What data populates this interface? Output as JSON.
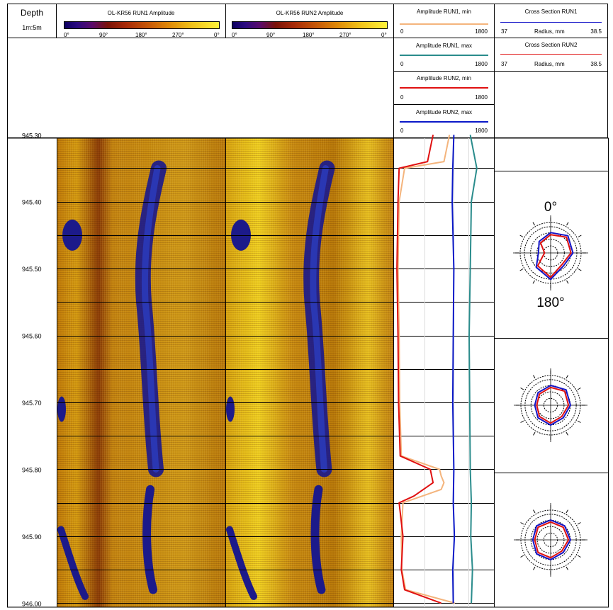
{
  "header": {
    "depth_title": "Depth",
    "depth_scale": "1m:5m",
    "run1_title": "OL-KR56 RUN1 Amplitude",
    "run2_title": "OL-KR56 RUN2 Amplitude",
    "deg_ticks": [
      "0°",
      "90°",
      "180°",
      "270°",
      "0°"
    ]
  },
  "legends": [
    {
      "label": "Amplitude RUN1, min",
      "color": "#f4b47c",
      "min": "0",
      "max": "1800"
    },
    {
      "label": "Amplitude RUN1, max",
      "color": "#2a8c8c",
      "min": "0",
      "max": "1800"
    },
    {
      "label": "Amplitude RUN2, min",
      "color": "#e01010",
      "min": "0",
      "max": "1800"
    },
    {
      "label": "Amplitude RUN2, max",
      "color": "#0a18c8",
      "min": "0",
      "max": "1800"
    }
  ],
  "cross_section_legends": [
    {
      "label": "Cross Section RUN1",
      "color": "#1414c8",
      "axis_label": "Radius, mm",
      "min": "37",
      "max": "38.5"
    },
    {
      "label": "Cross Section RUN2",
      "color": "#e01010",
      "axis_label": "Radius, mm",
      "min": "37",
      "max": "38.5"
    }
  ],
  "polar_labels": {
    "top": "0°",
    "bottom": "180°"
  },
  "chart_data": {
    "type": "line",
    "ylabel": "Depth",
    "depth_range": [
      945.3,
      946.0
    ],
    "depth_ticks": [
      "945.30",
      "945.40",
      "945.50",
      "945.60",
      "945.70",
      "945.80",
      "945.90",
      "946.00"
    ],
    "x_range": [
      0,
      1800
    ],
    "series": [
      {
        "name": "Amplitude RUN1, min",
        "color": "#f4b47c",
        "depth": [
          945.3,
          945.32,
          945.34,
          945.35,
          945.4,
          945.5,
          945.6,
          945.7,
          945.78,
          945.8,
          945.81,
          945.82,
          945.83,
          945.85,
          945.9,
          945.95,
          945.98,
          946.0
        ],
        "values": [
          1000,
          950,
          900,
          180,
          80,
          60,
          80,
          90,
          120,
          820,
          850,
          900,
          850,
          150,
          120,
          130,
          200,
          1100
        ]
      },
      {
        "name": "Amplitude RUN1, max",
        "color": "#2a8c8c",
        "depth": [
          945.3,
          945.35,
          945.4,
          945.5,
          945.6,
          945.7,
          945.8,
          945.85,
          945.9,
          945.95,
          946.0
        ],
        "values": [
          1380,
          1500,
          1400,
          1380,
          1360,
          1370,
          1380,
          1400,
          1390,
          1420,
          1400
        ]
      },
      {
        "name": "Amplitude RUN2, min",
        "color": "#e01010",
        "depth": [
          945.3,
          945.32,
          945.34,
          945.35,
          945.4,
          945.5,
          945.6,
          945.7,
          945.78,
          945.8,
          945.82,
          945.84,
          945.85,
          945.9,
          945.95,
          945.98,
          946.0
        ],
        "values": [
          700,
          650,
          600,
          80,
          60,
          40,
          60,
          70,
          100,
          650,
          700,
          350,
          80,
          150,
          120,
          180,
          850
        ]
      },
      {
        "name": "Amplitude RUN2, max",
        "color": "#0a18c8",
        "depth": [
          945.3,
          945.35,
          945.4,
          945.5,
          945.6,
          945.7,
          945.8,
          945.85,
          945.9,
          945.95,
          946.0
        ],
        "values": [
          1080,
          1060,
          1050,
          1080,
          1070,
          1060,
          1080,
          1070,
          1090,
          1060,
          1070
        ]
      }
    ],
    "cross_sections": [
      {
        "depth": 945.45,
        "run1_radius_mm": [
          38.0,
          38.2,
          38.1,
          37.9,
          38.3,
          38.0,
          37.6,
          37.8
        ],
        "run2_radius_mm": [
          37.9,
          38.1,
          38.0,
          37.8,
          38.2,
          37.9,
          37.3,
          37.7
        ]
      },
      {
        "depth": 945.7,
        "run1_radius_mm": [
          38.0,
          38.1,
          38.0,
          37.9,
          38.0,
          37.9,
          37.8,
          37.9
        ],
        "run2_radius_mm": [
          37.9,
          38.0,
          37.9,
          37.8,
          37.9,
          37.8,
          37.7,
          37.8
        ]
      },
      {
        "depth": 945.9,
        "run1_radius_mm": [
          38.0,
          38.0,
          38.0,
          37.9,
          38.0,
          38.0,
          37.9,
          38.0
        ],
        "run2_radius_mm": [
          37.9,
          37.9,
          37.9,
          37.8,
          37.9,
          37.9,
          37.8,
          37.9
        ]
      }
    ]
  }
}
